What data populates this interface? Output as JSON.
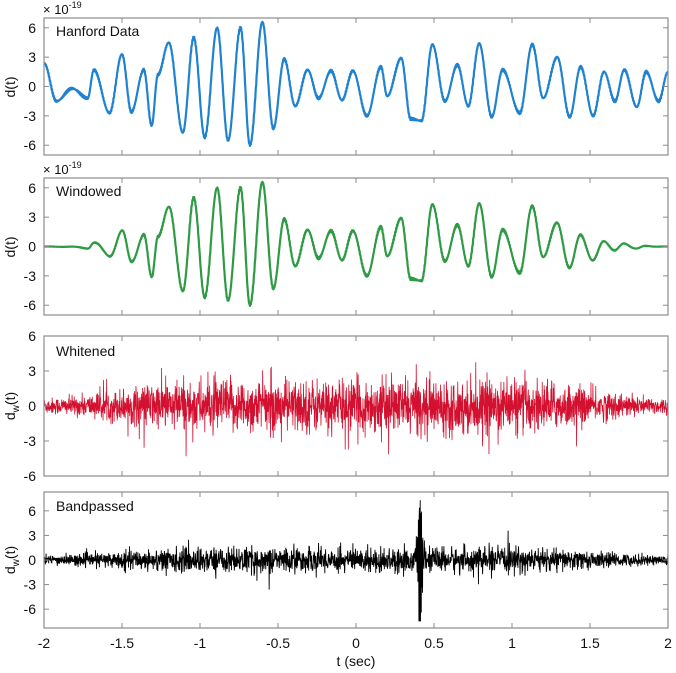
{
  "figure": {
    "xlabel": "t (sec)",
    "xlim": [
      -2,
      2
    ],
    "xticks": [
      -2,
      -1.5,
      -1,
      -0.5,
      0,
      0.5,
      1,
      1.5,
      2
    ],
    "xtick_labels": [
      "-2",
      "-1.5",
      "-1",
      "-0.5",
      "0",
      "0.5",
      "1",
      "1.5",
      "2"
    ]
  },
  "chart_data": [
    {
      "type": "line",
      "title": "Hanford Data",
      "ylabel": "d(t)",
      "y_multiplier": "× 10^-19",
      "y_multiplier_base": "× 10",
      "y_multiplier_exp": "-19",
      "color": "#1f82d0",
      "xlim": [
        -2,
        2
      ],
      "ylim": [
        -7,
        7
      ],
      "yticks": [
        -6,
        -3,
        0,
        3,
        6
      ],
      "xlabel": "",
      "description": "Quasi-periodic low-frequency oscillation (~7 Hz), peaks roughly ±6e-19 near t=-0.7",
      "peaks_x": [
        -2.0,
        -1.82,
        -1.68,
        -1.5,
        -1.36,
        -1.27,
        -1.2,
        -1.04,
        -0.89,
        -0.74,
        -0.6,
        -0.46,
        -0.31,
        -0.16,
        -0.02,
        0.16,
        0.29,
        0.49,
        0.65,
        0.79,
        0.94,
        1.13,
        1.29,
        1.44,
        1.59,
        1.72,
        1.86,
        2.0
      ],
      "peaks_y": [
        2.4,
        -0.2,
        1.7,
        3.3,
        1.7,
        1.2,
        4.5,
        5.0,
        6.0,
        6.0,
        6.6,
        2.8,
        1.7,
        1.6,
        1.6,
        2.0,
        2.9,
        4.3,
        2.2,
        4.4,
        1.7,
        4.3,
        3.0,
        2.0,
        1.5,
        1.7,
        1.5,
        1.5
      ],
      "troughs_x": [
        -1.92,
        -1.72,
        -1.58,
        -1.44,
        -1.31,
        -1.11,
        -0.97,
        -0.82,
        -0.68,
        -0.53,
        -0.39,
        -0.24,
        -0.09,
        0.07,
        0.2,
        0.35,
        0.42,
        0.57,
        0.72,
        0.87,
        1.05,
        1.2,
        1.37,
        1.52,
        1.66,
        1.8,
        1.94
      ],
      "troughs_y": [
        -1.5,
        -1.2,
        -2.7,
        -2.6,
        -4.0,
        -4.7,
        -5.2,
        -5.5,
        -6.0,
        -4.3,
        -2.0,
        -1.2,
        -1.4,
        -3.0,
        -1.0,
        -3.3,
        -3.5,
        -1.5,
        -2.0,
        -3.1,
        -2.7,
        -1.2,
        -3.1,
        -3.0,
        -1.5,
        -2.1,
        -1.5
      ]
    },
    {
      "type": "line",
      "title": "Windowed",
      "ylabel": "d(t)",
      "y_multiplier": "× 10^-19",
      "y_multiplier_base": "× 10",
      "y_multiplier_exp": "-19",
      "color": "#2e9a44",
      "xlim": [
        -2,
        2
      ],
      "ylim": [
        -7,
        7
      ],
      "yticks": [
        -6,
        -3,
        0,
        3,
        6
      ],
      "xlabel": "",
      "description": "Same signal as Hanford Data multiplied by a Tukey window tapering to 0 at t=±2"
    },
    {
      "type": "line",
      "title": "Whitened",
      "ylabel": "d_w(t)",
      "ylabel_base": "d",
      "ylabel_sub": "w",
      "ylabel_suffix": "(t)",
      "color": "#d3102f",
      "xlim": [
        -2,
        2
      ],
      "ylim": [
        -6,
        6
      ],
      "yticks": [
        -6,
        -3,
        0,
        3,
        6
      ],
      "xlabel": "",
      "description": "Broadband noise, amplitude envelope ~±1 near edges, ~±3 (spikes to ~4.5) between t≈-1.7 and 1.7"
    },
    {
      "type": "line",
      "title": "Bandpassed",
      "ylabel": "d_w(t)",
      "ylabel_base": "d",
      "ylabel_sub": "w",
      "ylabel_suffix": "(t)",
      "color": "#000000",
      "xlim": [
        -2,
        2
      ],
      "ylim": [
        -8.3,
        8.3
      ],
      "yticks": [
        -6,
        -3,
        0,
        3,
        6
      ],
      "xlabel": "t (sec)",
      "description": "Band-limited noise ~±2 (spikes ~±3) with a chirp transient peaking at ~+7.8/-7.5 near t≈0.41 s",
      "event_time": 0.41,
      "event_peak": 7.8,
      "event_trough": -7.5
    }
  ],
  "colors": {
    "hanford": "#1f82d0",
    "windowed": "#2e9a44",
    "whitened": "#d3102f",
    "bandpassed": "#000000",
    "axes": "#8c8c8c"
  }
}
